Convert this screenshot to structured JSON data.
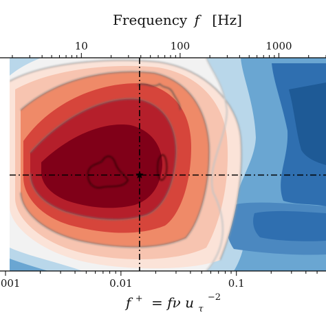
{
  "chart_data": {
    "type": "heatmap",
    "colormap": [
      "#08306b",
      "#2f6fb0",
      "#6aa6d2",
      "#b9d7ea",
      "#f2f2f2",
      "#f7c4b0",
      "#ef8a68",
      "#d6453b",
      "#b51f2b",
      "#800018"
    ],
    "top_axis": {
      "title_main": "Frequency",
      "title_var": "f",
      "title_unit": "[Hz]",
      "scale": "log",
      "range": [
        1.5,
        3000
      ],
      "ticks": [
        {
          "value": 10,
          "label": "10"
        },
        {
          "value": 100,
          "label": "100"
        },
        {
          "value": 1000,
          "label": "1000"
        }
      ]
    },
    "bottom_axis": {
      "title_var": "f",
      "title_sup": "+",
      "title_eq": "= fν u",
      "title_sub": "τ",
      "title_exp": "−2",
      "scale": "log",
      "range": [
        0.001,
        0.55
      ],
      "ticks": [
        {
          "value": 0.001,
          "label": "0.001"
        },
        {
          "value": 0.01,
          "label": "0.01"
        },
        {
          "value": 0.1,
          "label": "0.1"
        }
      ]
    },
    "peak": {
      "f_plus": 0.0145,
      "y_fraction": 0.55
    },
    "reference_lines": {
      "vertical_f_plus": 0.0145,
      "horizontal_y_fraction": 0.55
    }
  }
}
